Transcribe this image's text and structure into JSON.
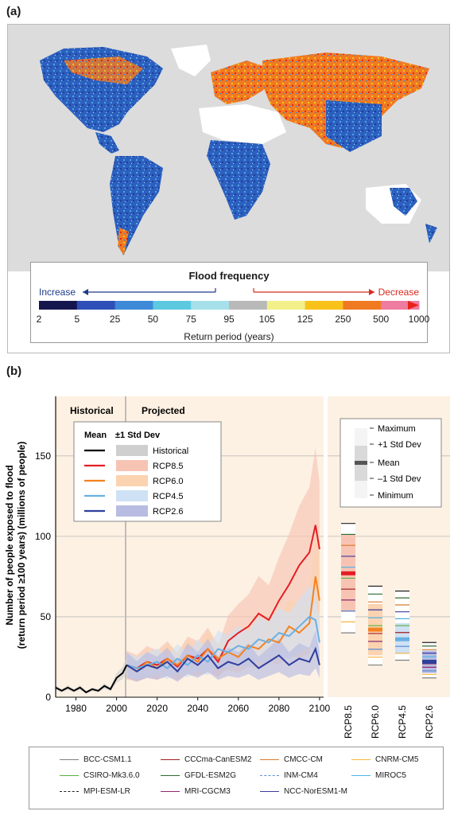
{
  "panel_a": {
    "label": "(a)",
    "legend": {
      "title": "Flood frequency",
      "increase_label": "Increase",
      "decrease_label": "Decrease",
      "return_period_ticks": [
        "2",
        "5",
        "25",
        "50",
        "75",
        "95",
        "105",
        "125",
        "250",
        "500",
        "1000"
      ],
      "unit_label": "Return period (years)",
      "colors": [
        "#16164f",
        "#2e4fb8",
        "#3d89d8",
        "#5cc9e0",
        "#a6e0ea",
        "#b9b9b9",
        "#f3f08a",
        "#f9c21b",
        "#f07a22",
        "#ee7ca0",
        "#e8231a"
      ]
    }
  },
  "panel_b": {
    "label": "(b)",
    "y_axis_label_1": "Number of people exposed to flood",
    "y_axis_label_2": "(return period ≥100 years) (millions of people)",
    "historical_label": "Historical",
    "projected_label": "Projected",
    "mean_legend": {
      "mean_header": "Mean",
      "std_header": "±1 Std Dev",
      "entries": [
        {
          "label": "Historical",
          "line": "#000000",
          "band": "#cfcfcf"
        },
        {
          "label": "RCP8.5",
          "line": "#e31e24",
          "band": "#f7c4b4"
        },
        {
          "label": "RCP6.0",
          "line": "#f58220",
          "band": "#fbd3b0"
        },
        {
          "label": "RCP4.5",
          "line": "#6ab0e2",
          "band": "#cfe1f4"
        },
        {
          "label": "RCP2.6",
          "line": "#2e3f9e",
          "band": "#b8bce2"
        }
      ]
    },
    "box_legend": [
      "Maximum",
      "+1 Std Dev",
      "Mean",
      "–1 Std Dev",
      "Minimum"
    ]
  },
  "chart_data": {
    "type": "line",
    "x_ticks": [
      "1980",
      "2000",
      "2020",
      "2040",
      "2060",
      "2080",
      "2100"
    ],
    "y_ticks": [
      "50",
      "100",
      "150"
    ],
    "xlim": [
      1970,
      2102
    ],
    "ylim": [
      0,
      187
    ],
    "series": [
      {
        "name": "Historical",
        "x": [
          1970,
          1973,
          1976,
          1979,
          1982,
          1985,
          1988,
          1991,
          1994,
          1997,
          2000,
          2003,
          2005
        ],
        "values": [
          6,
          4,
          6,
          4,
          6,
          3,
          5,
          4,
          7,
          5,
          12,
          15,
          20
        ]
      },
      {
        "name": "RCP8.5",
        "x": [
          2005,
          2010,
          2015,
          2020,
          2025,
          2030,
          2035,
          2040,
          2045,
          2050,
          2055,
          2060,
          2065,
          2070,
          2075,
          2080,
          2085,
          2090,
          2095,
          2098,
          2100
        ],
        "values": [
          20,
          18,
          22,
          20,
          24,
          19,
          26,
          24,
          30,
          22,
          35,
          40,
          44,
          52,
          48,
          60,
          70,
          82,
          90,
          107,
          92
        ]
      },
      {
        "name": "RCP6.0",
        "x": [
          2005,
          2010,
          2015,
          2020,
          2025,
          2030,
          2035,
          2040,
          2045,
          2050,
          2055,
          2060,
          2065,
          2070,
          2075,
          2080,
          2085,
          2090,
          2095,
          2098,
          2100
        ],
        "values": [
          20,
          16,
          22,
          18,
          24,
          20,
          26,
          22,
          30,
          24,
          28,
          25,
          32,
          30,
          36,
          34,
          44,
          40,
          46,
          75,
          60
        ]
      },
      {
        "name": "RCP4.5",
        "x": [
          2005,
          2010,
          2015,
          2020,
          2025,
          2030,
          2035,
          2040,
          2045,
          2050,
          2055,
          2060,
          2065,
          2070,
          2075,
          2080,
          2085,
          2090,
          2095,
          2098,
          2100
        ],
        "values": [
          20,
          18,
          20,
          22,
          18,
          24,
          20,
          26,
          22,
          30,
          28,
          32,
          30,
          36,
          34,
          40,
          38,
          44,
          50,
          48,
          34
        ]
      },
      {
        "name": "RCP2.6",
        "x": [
          2005,
          2010,
          2015,
          2020,
          2025,
          2030,
          2035,
          2040,
          2045,
          2050,
          2055,
          2060,
          2065,
          2070,
          2075,
          2080,
          2085,
          2090,
          2095,
          2098,
          2100
        ],
        "values": [
          20,
          16,
          20,
          18,
          22,
          16,
          24,
          20,
          26,
          18,
          22,
          20,
          24,
          18,
          22,
          26,
          20,
          24,
          22,
          30,
          20
        ]
      }
    ],
    "box_categories": [
      "RCP8.5",
      "RCP6.0",
      "RCP4.5",
      "RCP2.6"
    ],
    "box_stats": [
      {
        "min": 40,
        "minus_sd": 53,
        "mean": 77,
        "plus_sd": 101,
        "max": 108
      },
      {
        "min": 20,
        "minus_sd": 26,
        "mean": 42,
        "plus_sd": 58,
        "max": 69
      },
      {
        "min": 23,
        "minus_sd": 27,
        "mean": 36,
        "plus_sd": 46,
        "max": 66
      },
      {
        "min": 12,
        "minus_sd": 15,
        "mean": 22,
        "plus_sd": 29,
        "max": 34
      }
    ]
  },
  "model_legend": [
    {
      "name": "BCC-CSM1.1",
      "color": "#7f7f7f",
      "style": "solid"
    },
    {
      "name": "CCCma-CanESM2",
      "color": "#a11d21",
      "style": "solid"
    },
    {
      "name": "CMCC-CM",
      "color": "#d97b2b",
      "style": "solid"
    },
    {
      "name": "CNRM-CM5",
      "color": "#f5b33b",
      "style": "solid"
    },
    {
      "name": "CSIRO-Mk3.6.0",
      "color": "#58b13f",
      "style": "solid"
    },
    {
      "name": "GFDL-ESM2G",
      "color": "#2e6b2e",
      "style": "solid"
    },
    {
      "name": "INM-CM4",
      "color": "#5b8ed8",
      "style": "dashed"
    },
    {
      "name": "MIROC5",
      "color": "#4db3e6",
      "style": "solid"
    },
    {
      "name": "MPI-ESM-LR",
      "color": "#222222",
      "style": "dashed"
    },
    {
      "name": "MRI-CGCM3",
      "color": "#8e2a6e",
      "style": "solid"
    },
    {
      "name": "NCC-NorESM1-M",
      "color": "#3b3b9e",
      "style": "solid"
    }
  ]
}
